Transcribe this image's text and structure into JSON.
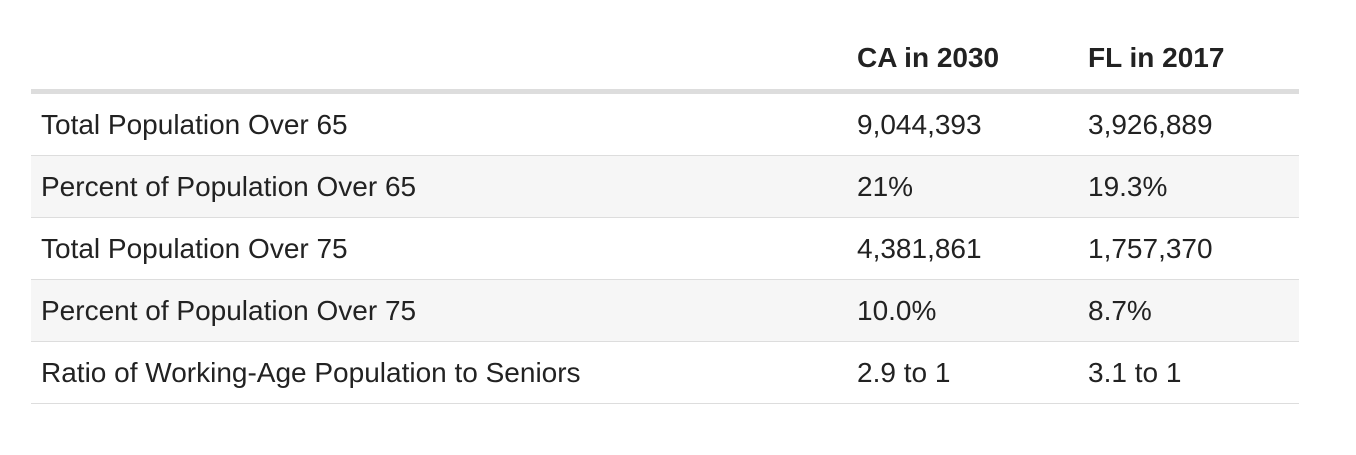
{
  "table": {
    "columns": [
      "",
      "CA in 2030",
      "FL in 2017"
    ],
    "rows": [
      {
        "label": "Total Population Over 65",
        "ca": "9,044,393",
        "fl": "3,926,889"
      },
      {
        "label": "Percent of Population Over 65",
        "ca": "21%",
        "fl": "19.3%"
      },
      {
        "label": "Total Population Over 75",
        "ca": "4,381,861",
        "fl": "1,757,370"
      },
      {
        "label": "Percent of Population Over 75",
        "ca": "10.0%",
        "fl": "8.7%"
      },
      {
        "label": "Ratio of Working-Age Population to Seniors",
        "ca": "2.9 to 1",
        "fl": "3.1 to 1"
      }
    ]
  },
  "colors": {
    "text": "#222222",
    "header_rule": "#dddddd",
    "row_rule": "#dddddd",
    "alt_row_bg": "#f6f6f6"
  }
}
